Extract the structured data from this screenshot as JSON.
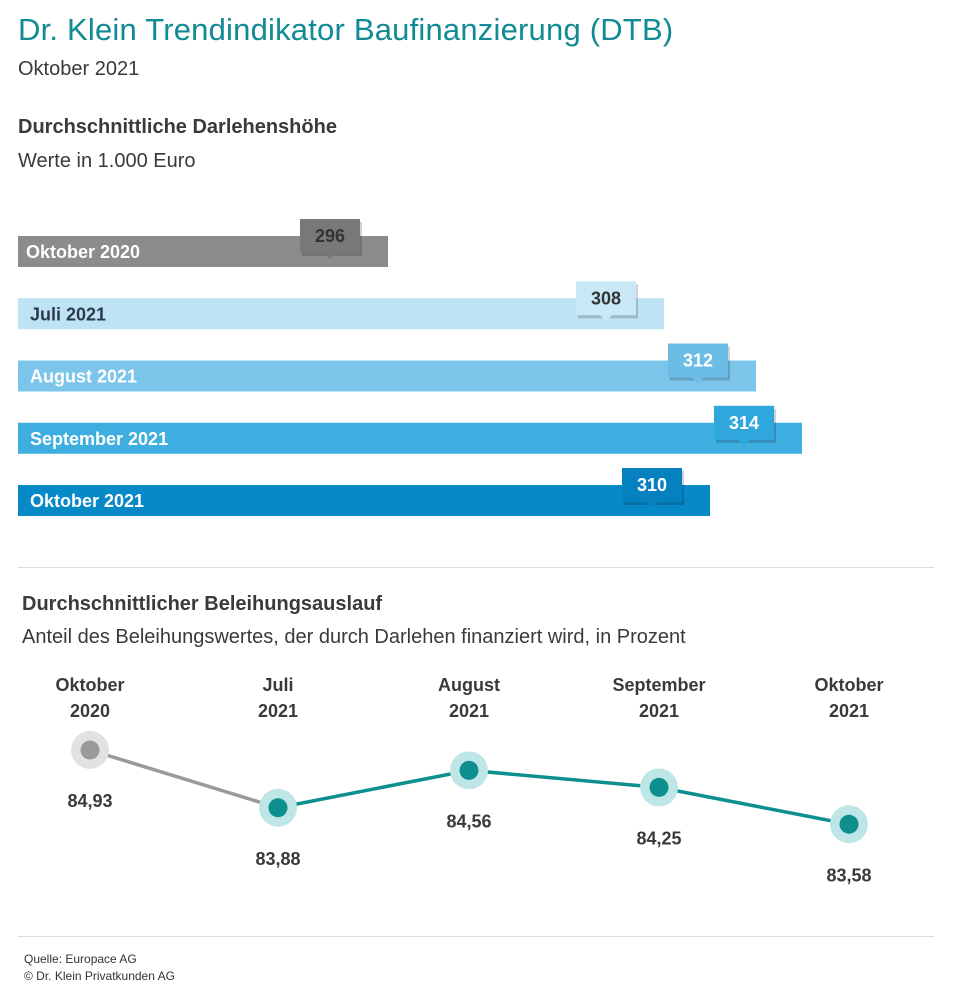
{
  "header": {
    "title": "Dr. Klein Trendindikator Baufinanzierung (DTB)",
    "subtitle": "Oktober 2021"
  },
  "chart_data": [
    {
      "type": "bar",
      "orientation": "horizontal",
      "title": "Durchschnittliche Darlehenshöhe",
      "subtitle": "Werte in 1.000 Euro",
      "categories": [
        "Oktober 2020",
        "Juli 2021",
        "August 2021",
        "September 2021",
        "Oktober 2021"
      ],
      "values": [
        296,
        308,
        312,
        314,
        310
      ],
      "value_labels": [
        "296",
        "308",
        "312",
        "314",
        "310"
      ],
      "colors": [
        "#8c8c8c",
        "#bde3f4",
        "#7cc5ea",
        "#3eaee0",
        "#0789c8"
      ],
      "label_colors": [
        "#ffffff",
        "#2b3b4a",
        "#ffffff",
        "#ffffff",
        "#ffffff"
      ],
      "tag_colors": [
        "#787878",
        "#c9e8f6",
        "#6cbde6",
        "#2fa6dc",
        "#0681bf"
      ],
      "tag_text_colors": [
        "#333333",
        "#333333",
        "#ffffff",
        "#ffffff",
        "#ffffff"
      ]
    },
    {
      "type": "line",
      "title": "Durchschnittlicher Beleihungsauslauf",
      "subtitle": "Anteil des Beleihungswertes, der durch Darlehen finanziert wird, in Prozent",
      "categories": [
        [
          "Oktober",
          "2020"
        ],
        [
          "Juli",
          "2021"
        ],
        [
          "August",
          "2021"
        ],
        [
          "September",
          "2021"
        ],
        [
          "Oktober",
          "2021"
        ]
      ],
      "values": [
        84.93,
        83.88,
        84.56,
        84.25,
        83.58
      ],
      "value_labels": [
        "84,93",
        "83,88",
        "84,56",
        "84,25",
        "83,58"
      ],
      "highlight_from_index": 1,
      "colors": {
        "previous": "#9a9a9a",
        "current": "#0e8f8f",
        "halo_current": "#bfe6e6",
        "halo_previous": "#e2e2e2"
      }
    }
  ],
  "footer": {
    "source": "Quelle: Europace AG",
    "copyright": "© Dr. Klein Privatkunden AG"
  }
}
